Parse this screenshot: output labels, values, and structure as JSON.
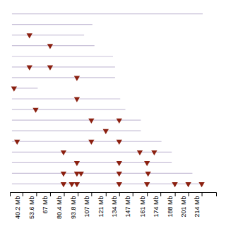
{
  "chart_data": {
    "type": "ideogram",
    "categories": [
      null,
      null,
      null,
      null,
      null,
      null,
      null,
      null,
      null,
      null,
      null,
      null,
      null,
      null,
      null,
      null,
      null
    ],
    "start": 30,
    "xlim": [
      28,
      228
    ],
    "xticks": [
      {
        "value": 40.2,
        "label": "40.2 Mb"
      },
      {
        "value": 53.6,
        "label": "53.6 Mb"
      },
      {
        "value": 67,
        "label": "67 Mb"
      },
      {
        "value": 80.4,
        "label": "80.4 Mb"
      },
      {
        "value": 93.8,
        "label": "93.8 Mb"
      },
      {
        "value": 107,
        "label": "107 Mb"
      },
      {
        "value": 121,
        "label": "121 Mb"
      },
      {
        "value": 134,
        "label": "134 Mb"
      },
      {
        "value": 147,
        "label": "147 Mb"
      },
      {
        "value": 161,
        "label": "161 Mb"
      },
      {
        "value": 174,
        "label": "174 Mb"
      },
      {
        "value": 188,
        "label": "188 Mb"
      },
      {
        "value": 201,
        "label": "201 Mb"
      },
      {
        "value": 214,
        "label": "214 Mb"
      }
    ],
    "series": [
      {
        "type": "line",
        "color": "#c8c0d8",
        "values": [
          215,
          108,
          100,
          110,
          128,
          130,
          130,
          55,
          135,
          140,
          155,
          155,
          175,
          185,
          185,
          205,
          215
        ]
      },
      {
        "type": "scatter",
        "marker": "triangle-down",
        "color": "#8b2010",
        "values": [
          [],
          [],
          [
            47
          ],
          [
            67
          ],
          [],
          [
            47,
            67
          ],
          [
            93
          ],
          [
            32
          ],
          [
            93
          ],
          [
            53
          ],
          [
            107,
            134
          ],
          [
            121
          ],
          [
            35,
            107,
            134
          ],
          [
            80,
            154,
            168
          ],
          [
            93,
            134,
            161
          ],
          [
            80,
            93,
            97,
            134,
            162
          ],
          [
            80,
            88,
            93,
            134,
            161,
            188,
            201,
            214
          ]
        ]
      }
    ]
  }
}
